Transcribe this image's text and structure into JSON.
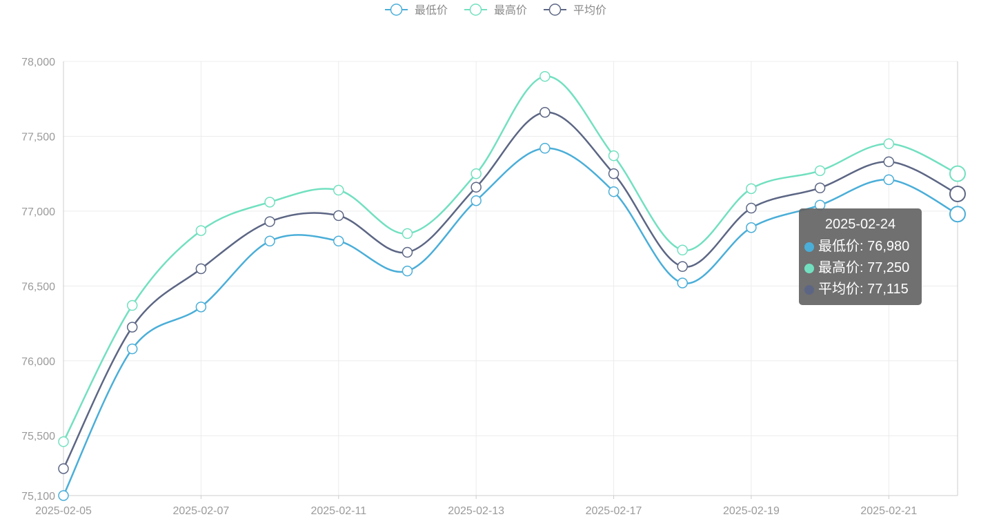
{
  "chart_data": {
    "type": "line",
    "title": "",
    "xlabel": "",
    "ylabel": "",
    "ylim": [
      75100,
      78000
    ],
    "y_ticks": [
      75100,
      75500,
      76000,
      76500,
      77000,
      77500,
      78000
    ],
    "y_tick_labels": [
      "75,100",
      "75,500",
      "76,000",
      "76,500",
      "77,000",
      "77,500",
      "78,000"
    ],
    "x": [
      "2025-02-05",
      "2025-02-06",
      "2025-02-07",
      "2025-02-10",
      "2025-02-11",
      "2025-02-12",
      "2025-02-13",
      "2025-02-14",
      "2025-02-17",
      "2025-02-18",
      "2025-02-19",
      "2025-02-20",
      "2025-02-21",
      "2025-02-24"
    ],
    "x_tick_labels": [
      "2025-02-05",
      "2025-02-07",
      "2025-02-11",
      "2025-02-13",
      "2025-02-17",
      "2025-02-19",
      "2025-02-21"
    ],
    "x_tick_every": 2,
    "grid": true,
    "smooth": true,
    "legend_position": "top-center",
    "series": [
      {
        "name": "最低价",
        "color": "#4aaed8",
        "values": [
          75100,
          76080,
          76360,
          76800,
          76800,
          76600,
          77070,
          77420,
          77130,
          76520,
          76890,
          77040,
          77210,
          76980
        ]
      },
      {
        "name": "最高价",
        "color": "#72e0c0",
        "values": [
          75460,
          76370,
          76870,
          77060,
          77140,
          76850,
          77250,
          77900,
          77370,
          76740,
          77150,
          77270,
          77450,
          77250
        ]
      },
      {
        "name": "平均价",
        "color": "#5c6684",
        "values": [
          75280,
          76225,
          76615,
          76930,
          76970,
          76725,
          77160,
          77660,
          77250,
          76630,
          77020,
          77155,
          77330,
          77115
        ]
      }
    ],
    "tooltip": {
      "title": "2025-02-24",
      "rows": [
        {
          "label": "最低价: 76,980",
          "color": "#4aaed8"
        },
        {
          "label": "最高价: 77,250",
          "color": "#72e0c0"
        },
        {
          "label": "平均价: 77,115",
          "color": "#5c6684"
        }
      ]
    }
  }
}
